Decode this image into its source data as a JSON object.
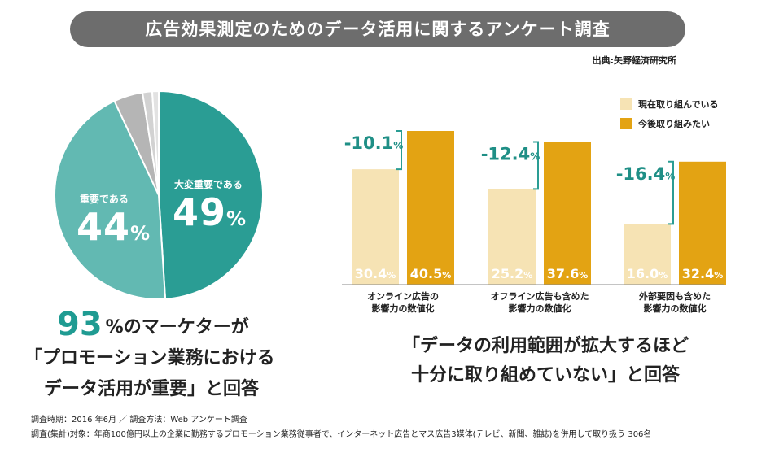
{
  "title": "広告効果測定のためのデータ活用に関するアンケート調査",
  "source": "出典:矢野経済研究所",
  "chart_data": [
    {
      "type": "pie",
      "slices": [
        {
          "label": "大変重要である",
          "value": 49,
          "color": "#2a9d94"
        },
        {
          "label": "重要である",
          "value": 44,
          "color": "#62b9b2"
        },
        {
          "label": "",
          "value": 4.5,
          "color": "#b5b5b5"
        },
        {
          "label": "",
          "value": 1.5,
          "color": "#d2d2d2"
        },
        {
          "label": "",
          "value": 1,
          "color": "#e2e2e2"
        }
      ],
      "display": [
        {
          "label": "大変重要である",
          "number": "49",
          "unit": "%"
        },
        {
          "label": "重要である",
          "number": "44",
          "unit": "%"
        }
      ]
    },
    {
      "type": "bar",
      "categories": [
        "オンライン広告の\n影響力の数値化",
        "オフライン広告も含めた\n影響力の数値化",
        "外部要因も含めた\n影響力の数値化"
      ],
      "series": [
        {
          "name": "現在取り組んでいる",
          "values": [
            30.4,
            25.2,
            16.0
          ],
          "labels": [
            "30.4",
            "25.2",
            "16.0"
          ],
          "color": "#f6e3b4"
        },
        {
          "name": "今後取り組みたい",
          "values": [
            40.5,
            37.6,
            32.4
          ],
          "labels": [
            "40.5",
            "37.6",
            "32.4"
          ],
          "color": "#e3a313"
        }
      ],
      "differences": [
        "-10.1",
        "-12.4",
        "-16.4"
      ],
      "unit": "%",
      "ylim": [
        0,
        45
      ]
    }
  ],
  "headline_left": {
    "number": "93",
    "line1_rest": "%のマーケターが",
    "line2": "「プロモーション業務における",
    "line3": "データ活用が重要」と回答"
  },
  "headline_right": {
    "line1": "「データの利用範囲が拡大するほど",
    "line2": "十分に取り組めていない」と回答"
  },
  "footnotes": {
    "line1": "調査時期：2016 年6月 ／ 調査方法：Web アンケート調査",
    "line2": "調査(集計)対象：年商100億円以上の企業に勤務するプロモーション業務従事者で、インターネット広告とマス広告3媒体(テレビ、新聞、雑誌)を併用して取り扱う 306名"
  },
  "colors": {
    "title_bg": "#6d6d6d",
    "accent": "#1f9b92",
    "bar_bracket": "#2a9d94"
  }
}
